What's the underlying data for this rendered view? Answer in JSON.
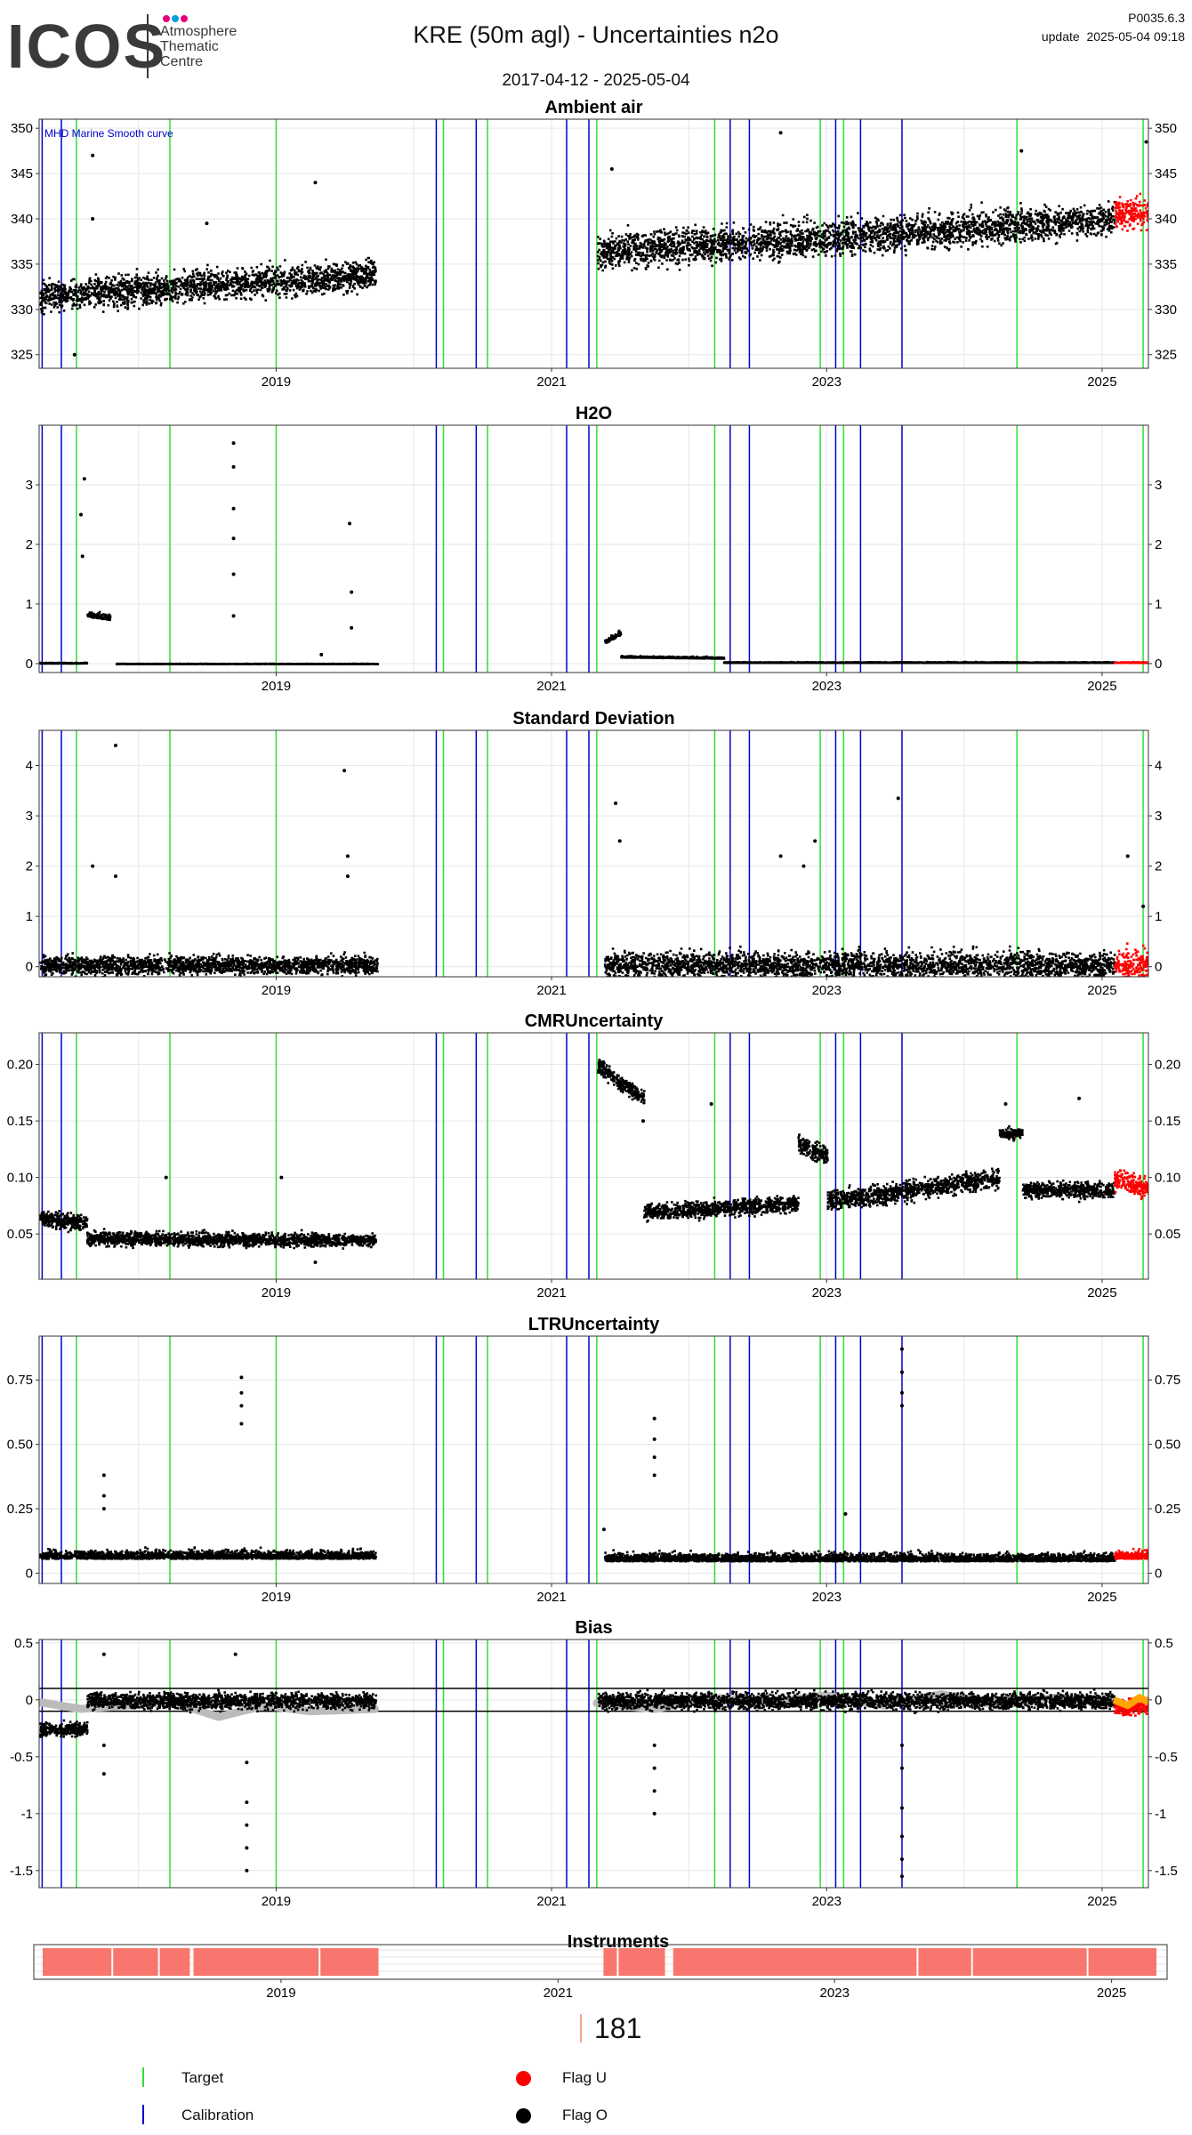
{
  "header": {
    "logo_word": "ICOS",
    "logo_sub": [
      "Atmosphere",
      "Thematic",
      "Centre"
    ],
    "logo_dot_colors": [
      "#e4007c",
      "#00a0e0",
      "#e4007c"
    ],
    "title": "KRE  (50m agl) - Uncertainties n2o",
    "date_range": "2017-04-12 - 2025-05-04",
    "version": "P0035.6.3",
    "update": "update  2025-05-04 09:18"
  },
  "colors": {
    "target": "#33dd33",
    "calibration": "#0000cc",
    "flag_u": "#ff0000",
    "flag_o": "#000000",
    "bias_smooth": "#bbbbbb",
    "bias_u_smooth": "#ffa500",
    "instrument": "#f8766d"
  },
  "chart_data": [
    {
      "type": "scatter",
      "title": "Ambient air",
      "xlim": [
        "2017-04-12",
        "2025-05-04"
      ],
      "x_ticks": [
        "2019",
        "2021",
        "2023",
        "2025"
      ],
      "ylim": [
        323.5,
        351
      ],
      "y_ticks": [
        325,
        330,
        335,
        340,
        345,
        350
      ],
      "annotation": "MHD Marine Smooth curve",
      "series": [
        {
          "flag": "O",
          "segments": [
            {
              "x_start": "2017-04-12",
              "x_end": "2019-09-20",
              "baseline_start": 331.5,
              "baseline_end": 334,
              "spread": 2.8
            }
          ]
        },
        {
          "flag": "O",
          "segments": [
            {
              "x_start": "2021-05-01",
              "x_end": "2025-02-01",
              "baseline_start": 336.5,
              "baseline_end": 340,
              "spread": 3.2
            }
          ]
        },
        {
          "flag": "U",
          "segments": [
            {
              "x_start": "2025-02-01",
              "x_end": "2025-05-04",
              "baseline_start": 340.5,
              "baseline_end": 341,
              "spread": 3
            }
          ]
        }
      ],
      "outliers": [
        {
          "x": "2017-09-01",
          "y": 347
        },
        {
          "x": "2017-09-01",
          "y": 340
        },
        {
          "x": "2017-07-15",
          "y": 325
        },
        {
          "x": "2019-04-15",
          "y": 344
        },
        {
          "x": "2018-07-01",
          "y": 339.5
        },
        {
          "x": "2021-06-10",
          "y": 345.5
        },
        {
          "x": "2022-09-01",
          "y": 349.5
        },
        {
          "x": "2024-06-01",
          "y": 347.5
        },
        {
          "x": "2025-04-28",
          "y": 348.5
        }
      ]
    },
    {
      "type": "scatter",
      "title": "H2O",
      "xlim": [
        "2017-04-12",
        "2025-05-04"
      ],
      "x_ticks": [
        "2019",
        "2021",
        "2023",
        "2025"
      ],
      "ylim": [
        -0.15,
        4.0
      ],
      "y_ticks": [
        0,
        1,
        2,
        3
      ],
      "series": [
        {
          "flag": "O",
          "segments": [
            {
              "x_start": "2017-04-12",
              "x_end": "2017-08-15",
              "baseline_start": 0.02,
              "baseline_end": 0.02,
              "spread": 0.02
            },
            {
              "x_start": "2017-08-15",
              "x_end": "2017-10-15",
              "baseline_start": 0.8,
              "baseline_end": 0.75,
              "spread": 0.15
            },
            {
              "x_start": "2017-11-01",
              "x_end": "2019-09-25",
              "baseline_start": 0.01,
              "baseline_end": 0.01,
              "spread": 0.01
            },
            {
              "x_start": "2021-05-20",
              "x_end": "2021-07-01",
              "baseline_start": 0.35,
              "baseline_end": 0.5,
              "spread": 0.12
            },
            {
              "x_start": "2021-07-01",
              "x_end": "2022-04-01",
              "baseline_start": 0.12,
              "baseline_end": 0.1,
              "spread": 0.04
            },
            {
              "x_start": "2022-04-01",
              "x_end": "2025-02-01",
              "baseline_start": 0.03,
              "baseline_end": 0.03,
              "spread": 0.02
            }
          ]
        },
        {
          "flag": "U",
          "segments": [
            {
              "x_start": "2025-02-01",
              "x_end": "2025-05-04",
              "baseline_start": 0.03,
              "baseline_end": 0.03,
              "spread": 0.02
            }
          ]
        }
      ],
      "outliers": [
        {
          "x": "2017-08-10",
          "y": 3.1
        },
        {
          "x": "2017-08-01",
          "y": 2.5
        },
        {
          "x": "2017-08-05",
          "y": 1.8
        },
        {
          "x": "2018-09-10",
          "y": 3.7
        },
        {
          "x": "2018-09-10",
          "y": 3.3
        },
        {
          "x": "2018-09-10",
          "y": 2.6
        },
        {
          "x": "2018-09-10",
          "y": 2.1
        },
        {
          "x": "2018-09-10",
          "y": 1.5
        },
        {
          "x": "2018-09-10",
          "y": 0.8
        },
        {
          "x": "2019-07-15",
          "y": 2.35
        },
        {
          "x": "2019-07-20",
          "y": 1.2
        },
        {
          "x": "2019-07-20",
          "y": 0.6
        },
        {
          "x": "2019-05-01",
          "y": 0.15
        }
      ]
    },
    {
      "type": "scatter",
      "title": "Standard Deviation",
      "xlim": [
        "2017-04-12",
        "2025-05-04"
      ],
      "x_ticks": [
        "2019",
        "2021",
        "2023",
        "2025"
      ],
      "ylim": [
        -0.2,
        4.7
      ],
      "y_ticks": [
        0,
        1,
        2,
        3,
        4
      ],
      "series": [
        {
          "flag": "O",
          "segments": [
            {
              "x_start": "2017-04-12",
              "x_end": "2019-09-25",
              "baseline_start": 0.05,
              "baseline_end": 0.05,
              "spread": 0.3
            },
            {
              "x_start": "2021-05-20",
              "x_end": "2025-02-01",
              "baseline_start": 0.05,
              "baseline_end": 0.05,
              "spread": 0.45
            }
          ]
        },
        {
          "flag": "U",
          "segments": [
            {
              "x_start": "2025-02-01",
              "x_end": "2025-05-04",
              "baseline_start": 0.05,
              "baseline_end": 0.05,
              "spread": 0.5
            }
          ]
        }
      ],
      "outliers": [
        {
          "x": "2017-11-01",
          "y": 4.4
        },
        {
          "x": "2017-09-01",
          "y": 2.0
        },
        {
          "x": "2017-11-01",
          "y": 1.8
        },
        {
          "x": "2019-07-01",
          "y": 3.9
        },
        {
          "x": "2019-07-10",
          "y": 2.2
        },
        {
          "x": "2019-07-10",
          "y": 1.8
        },
        {
          "x": "2021-06-20",
          "y": 3.25
        },
        {
          "x": "2021-07-01",
          "y": 2.5
        },
        {
          "x": "2022-09-01",
          "y": 2.2
        },
        {
          "x": "2022-11-01",
          "y": 2.0
        },
        {
          "x": "2023-07-10",
          "y": 3.35
        },
        {
          "x": "2022-12-01",
          "y": 2.5
        },
        {
          "x": "2025-03-10",
          "y": 2.2
        },
        {
          "x": "2025-04-20",
          "y": 1.2
        }
      ]
    },
    {
      "type": "scatter",
      "title": "CMRUncertainty",
      "xlim": [
        "2017-04-12",
        "2025-05-04"
      ],
      "x_ticks": [
        "2019",
        "2021",
        "2023",
        "2025"
      ],
      "ylim": [
        0.01,
        0.228
      ],
      "y_ticks": [
        0.05,
        0.1,
        0.15,
        0.2
      ],
      "series": [
        {
          "flag": "O",
          "segments": [
            {
              "x_start": "2017-04-12",
              "x_end": "2017-08-15",
              "baseline_start": 0.065,
              "baseline_end": 0.06,
              "spread": 0.012
            },
            {
              "x_start": "2017-08-15",
              "x_end": "2019-09-20",
              "baseline_start": 0.047,
              "baseline_end": 0.045,
              "spread": 0.01
            },
            {
              "x_start": "2021-05-01",
              "x_end": "2021-09-01",
              "baseline_start": 0.2,
              "baseline_end": 0.17,
              "spread": 0.012
            },
            {
              "x_start": "2021-09-01",
              "x_end": "2022-10-15",
              "baseline_start": 0.07,
              "baseline_end": 0.078,
              "spread": 0.012
            },
            {
              "x_start": "2022-10-15",
              "x_end": "2023-01-01",
              "baseline_start": 0.13,
              "baseline_end": 0.12,
              "spread": 0.015
            },
            {
              "x_start": "2023-01-01",
              "x_end": "2024-04-01",
              "baseline_start": 0.08,
              "baseline_end": 0.1,
              "spread": 0.015
            },
            {
              "x_start": "2024-04-01",
              "x_end": "2024-06-01",
              "baseline_start": 0.14,
              "baseline_end": 0.14,
              "spread": 0.008
            },
            {
              "x_start": "2024-06-01",
              "x_end": "2025-02-01",
              "baseline_start": 0.09,
              "baseline_end": 0.09,
              "spread": 0.012
            }
          ]
        },
        {
          "flag": "U",
          "segments": [
            {
              "x_start": "2025-02-01",
              "x_end": "2025-05-04",
              "baseline_start": 0.1,
              "baseline_end": 0.09,
              "spread": 0.015
            }
          ]
        }
      ],
      "outliers": [
        {
          "x": "2018-03-15",
          "y": 0.1
        },
        {
          "x": "2019-01-15",
          "y": 0.1
        },
        {
          "x": "2021-09-01",
          "y": 0.15
        },
        {
          "x": "2022-03-01",
          "y": 0.165
        },
        {
          "x": "2024-04-20",
          "y": 0.165
        },
        {
          "x": "2024-11-01",
          "y": 0.17
        },
        {
          "x": "2019-04-15",
          "y": 0.025
        }
      ]
    },
    {
      "type": "scatter",
      "title": "LTRUncertainty",
      "xlim": [
        "2017-04-12",
        "2025-05-04"
      ],
      "x_ticks": [
        "2019",
        "2021",
        "2023",
        "2025"
      ],
      "ylim": [
        -0.04,
        0.92
      ],
      "y_ticks": [
        0.0,
        0.25,
        0.5,
        0.75
      ],
      "series": [
        {
          "flag": "O",
          "segments": [
            {
              "x_start": "2017-04-12",
              "x_end": "2019-09-20",
              "baseline_start": 0.06,
              "baseline_end": 0.06,
              "spread": 0.05
            },
            {
              "x_start": "2021-05-20",
              "x_end": "2025-02-01",
              "baseline_start": 0.05,
              "baseline_end": 0.05,
              "spread": 0.05
            }
          ]
        },
        {
          "flag": "U",
          "segments": [
            {
              "x_start": "2025-02-01",
              "x_end": "2025-05-04",
              "baseline_start": 0.06,
              "baseline_end": 0.06,
              "spread": 0.05
            }
          ]
        }
      ],
      "outliers": [
        {
          "x": "2017-10-01",
          "y": 0.38
        },
        {
          "x": "2017-10-01",
          "y": 0.3
        },
        {
          "x": "2017-10-01",
          "y": 0.25
        },
        {
          "x": "2018-10-01",
          "y": 0.76
        },
        {
          "x": "2018-10-01",
          "y": 0.7
        },
        {
          "x": "2018-10-01",
          "y": 0.65
        },
        {
          "x": "2018-10-01",
          "y": 0.58
        },
        {
          "x": "2021-10-01",
          "y": 0.6
        },
        {
          "x": "2021-10-01",
          "y": 0.52
        },
        {
          "x": "2021-10-01",
          "y": 0.45
        },
        {
          "x": "2021-10-01",
          "y": 0.38
        },
        {
          "x": "2023-07-20",
          "y": 0.87
        },
        {
          "x": "2023-07-20",
          "y": 0.78
        },
        {
          "x": "2023-07-20",
          "y": 0.7
        },
        {
          "x": "2023-07-20",
          "y": 0.65
        },
        {
          "x": "2023-02-20",
          "y": 0.23
        },
        {
          "x": "2021-05-20",
          "y": 0.17
        }
      ]
    },
    {
      "type": "scatter",
      "title": "Bias",
      "xlim": [
        "2017-04-12",
        "2025-05-04"
      ],
      "x_ticks": [
        "2019",
        "2021",
        "2023",
        "2025"
      ],
      "ylim": [
        -1.65,
        0.53
      ],
      "y_ticks": [
        0.5,
        0.0,
        -0.5,
        -1.0,
        -1.5
      ],
      "hlines": [
        0.1,
        -0.1
      ],
      "series": [
        {
          "flag": "O",
          "segments": [
            {
              "x_start": "2017-04-12",
              "x_end": "2017-08-15",
              "baseline_start": -0.25,
              "baseline_end": -0.25,
              "spread": 0.1
            },
            {
              "x_start": "2017-08-15",
              "x_end": "2019-09-20",
              "baseline_start": 0.0,
              "baseline_end": 0.0,
              "spread": 0.12
            },
            {
              "x_start": "2021-05-01",
              "x_end": "2025-02-01",
              "baseline_start": 0.0,
              "baseline_end": 0.0,
              "spread": 0.12
            }
          ]
        },
        {
          "flag": "U",
          "segments": [
            {
              "x_start": "2025-02-01",
              "x_end": "2025-05-04",
              "baseline_start": -0.05,
              "baseline_end": -0.05,
              "spread": 0.12
            }
          ]
        }
      ],
      "smooth": [
        {
          "x": "2017-04-12",
          "y": -0.02
        },
        {
          "x": "2017-08-01",
          "y": -0.08
        },
        {
          "x": "2017-12-01",
          "y": -0.05
        },
        {
          "x": "2018-04-01",
          "y": -0.02
        },
        {
          "x": "2018-08-01",
          "y": -0.15
        },
        {
          "x": "2018-12-01",
          "y": -0.05
        },
        {
          "x": "2019-04-01",
          "y": -0.1
        },
        {
          "x": "2019-09-20",
          "y": -0.08
        },
        {
          "x": "2021-05-01",
          "y": -0.03
        },
        {
          "x": "2021-10-01",
          "y": -0.08
        },
        {
          "x": "2022-03-01",
          "y": 0.02
        },
        {
          "x": "2022-08-01",
          "y": -0.02
        },
        {
          "x": "2023-01-01",
          "y": 0.04
        },
        {
          "x": "2023-06-01",
          "y": -0.05
        },
        {
          "x": "2023-11-01",
          "y": 0.05
        },
        {
          "x": "2024-04-01",
          "y": -0.05
        },
        {
          "x": "2024-09-01",
          "y": 0.02
        },
        {
          "x": "2025-02-01",
          "y": -0.02
        }
      ],
      "smooth_u": [
        {
          "x": "2025-02-01",
          "y": 0.0
        },
        {
          "x": "2025-03-10",
          "y": -0.05
        },
        {
          "x": "2025-04-10",
          "y": 0.02
        },
        {
          "x": "2025-05-04",
          "y": -0.02
        }
      ],
      "outliers": [
        {
          "x": "2017-10-01",
          "y": 0.4
        },
        {
          "x": "2017-10-01",
          "y": -0.65
        },
        {
          "x": "2017-10-01",
          "y": -0.4
        },
        {
          "x": "2018-10-15",
          "y": -0.9
        },
        {
          "x": "2018-10-15",
          "y": -1.1
        },
        {
          "x": "2018-10-15",
          "y": -1.3
        },
        {
          "x": "2018-10-15",
          "y": -1.5
        },
        {
          "x": "2018-10-15",
          "y": -0.55
        },
        {
          "x": "2018-09-15",
          "y": 0.4
        },
        {
          "x": "2021-10-01",
          "y": -0.4
        },
        {
          "x": "2021-10-01",
          "y": -0.6
        },
        {
          "x": "2021-10-01",
          "y": -0.8
        },
        {
          "x": "2021-10-01",
          "y": -1.0
        },
        {
          "x": "2023-07-20",
          "y": -0.4
        },
        {
          "x": "2023-07-20",
          "y": -0.6
        },
        {
          "x": "2023-07-20",
          "y": -0.95
        },
        {
          "x": "2023-07-20",
          "y": -1.2
        },
        {
          "x": "2023-07-20",
          "y": -1.4
        },
        {
          "x": "2023-07-20",
          "y": -1.55
        }
      ]
    },
    {
      "type": "bar",
      "title": "Instruments",
      "xlim": [
        "2017-04-12",
        "2025-05-04"
      ],
      "x_ticks": [
        "2019",
        "2021",
        "2023",
        "2025"
      ],
      "instrument_label": "181",
      "periods": [
        {
          "x_start": "2017-04-12",
          "x_end": "2017-10-15"
        },
        {
          "x_start": "2017-10-15",
          "x_end": "2018-02-15"
        },
        {
          "x_start": "2018-02-15",
          "x_end": "2018-05-10"
        },
        {
          "x_start": "2018-05-15",
          "x_end": "2019-04-15"
        },
        {
          "x_start": "2019-04-15",
          "x_end": "2019-09-20"
        },
        {
          "x_start": "2021-05-01",
          "x_end": "2021-06-10"
        },
        {
          "x_start": "2021-06-10",
          "x_end": "2021-10-15"
        },
        {
          "x_start": "2021-11-01",
          "x_end": "2023-08-10"
        },
        {
          "x_start": "2023-08-10",
          "x_end": "2024-01-01"
        },
        {
          "x_start": "2024-01-01",
          "x_end": "2024-11-01"
        },
        {
          "x_start": "2024-11-01",
          "x_end": "2025-05-04"
        }
      ]
    }
  ],
  "vlines": {
    "target": [
      "2017-07-20",
      "2018-03-25",
      "2019-01-01",
      "2020-03-20",
      "2020-07-15",
      "2021-05-01",
      "2022-03-10",
      "2022-12-15",
      "2023-02-15",
      "2024-05-20",
      "2025-04-20"
    ],
    "calibration": [
      "2017-04-20",
      "2017-06-10",
      "2020-03-01",
      "2020-06-15",
      "2021-02-10",
      "2021-04-10",
      "2022-04-20",
      "2022-06-10",
      "2023-01-25",
      "2023-04-01",
      "2023-07-20"
    ]
  },
  "legend": {
    "target_label": "Target",
    "calibration_label": "Calibration",
    "flag_u_label": "Flag U",
    "flag_o_label": "Flag O"
  }
}
